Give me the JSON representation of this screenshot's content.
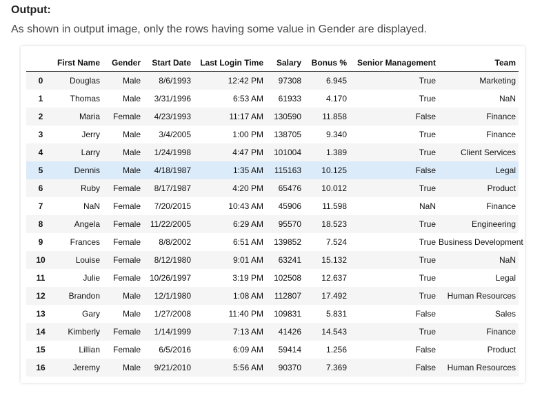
{
  "heading": "Output:",
  "description": "As shown in output image, only the rows having some value in Gender are displayed.",
  "table": {
    "columns": [
      "",
      "First Name",
      "Gender",
      "Start Date",
      "Last Login Time",
      "Salary",
      "Bonus %",
      "Senior Management",
      "Team"
    ],
    "highlighted_row": 5,
    "rows": [
      [
        "0",
        "Douglas",
        "Male",
        "8/6/1993",
        "12:42 PM",
        "97308",
        "6.945",
        "True",
        "Marketing"
      ],
      [
        "1",
        "Thomas",
        "Male",
        "3/31/1996",
        "6:53 AM",
        "61933",
        "4.170",
        "True",
        "NaN"
      ],
      [
        "2",
        "Maria",
        "Female",
        "4/23/1993",
        "11:17 AM",
        "130590",
        "11.858",
        "False",
        "Finance"
      ],
      [
        "3",
        "Jerry",
        "Male",
        "3/4/2005",
        "1:00 PM",
        "138705",
        "9.340",
        "True",
        "Finance"
      ],
      [
        "4",
        "Larry",
        "Male",
        "1/24/1998",
        "4:47 PM",
        "101004",
        "1.389",
        "True",
        "Client Services"
      ],
      [
        "5",
        "Dennis",
        "Male",
        "4/18/1987",
        "1:35 AM",
        "115163",
        "10.125",
        "False",
        "Legal"
      ],
      [
        "6",
        "Ruby",
        "Female",
        "8/17/1987",
        "4:20 PM",
        "65476",
        "10.012",
        "True",
        "Product"
      ],
      [
        "7",
        "NaN",
        "Female",
        "7/20/2015",
        "10:43 AM",
        "45906",
        "11.598",
        "NaN",
        "Finance"
      ],
      [
        "8",
        "Angela",
        "Female",
        "11/22/2005",
        "6:29 AM",
        "95570",
        "18.523",
        "True",
        "Engineering"
      ],
      [
        "9",
        "Frances",
        "Female",
        "8/8/2002",
        "6:51 AM",
        "139852",
        "7.524",
        "True",
        "Business Development"
      ],
      [
        "10",
        "Louise",
        "Female",
        "8/12/1980",
        "9:01 AM",
        "63241",
        "15.132",
        "True",
        "NaN"
      ],
      [
        "11",
        "Julie",
        "Female",
        "10/26/1997",
        "3:19 PM",
        "102508",
        "12.637",
        "True",
        "Legal"
      ],
      [
        "12",
        "Brandon",
        "Male",
        "12/1/1980",
        "1:08 AM",
        "112807",
        "17.492",
        "True",
        "Human Resources"
      ],
      [
        "13",
        "Gary",
        "Male",
        "1/27/2008",
        "11:40 PM",
        "109831",
        "5.831",
        "False",
        "Sales"
      ],
      [
        "14",
        "Kimberly",
        "Female",
        "1/14/1999",
        "7:13 AM",
        "41426",
        "14.543",
        "True",
        "Finance"
      ],
      [
        "15",
        "Lillian",
        "Female",
        "6/5/2016",
        "6:09 AM",
        "59414",
        "1.256",
        "False",
        "Product"
      ],
      [
        "16",
        "Jeremy",
        "Male",
        "9/21/2010",
        "5:56 AM",
        "90370",
        "7.369",
        "False",
        "Human Resources"
      ]
    ]
  }
}
